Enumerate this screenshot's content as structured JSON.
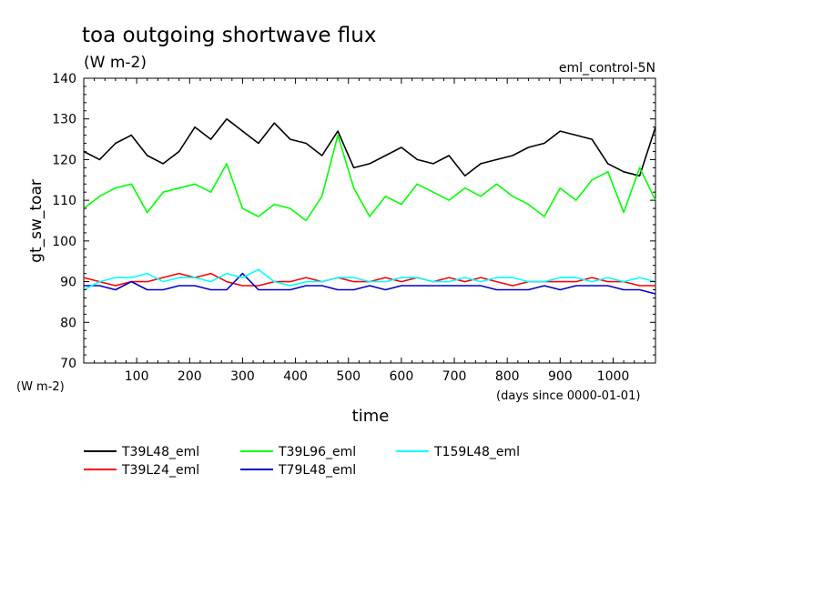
{
  "chart_data": {
    "type": "line",
    "title": "toa outgoing shortwave flux",
    "subtitle": "(W m-2)",
    "run_label": "eml_control-5N",
    "ylabel": "gt_sw_toar",
    "yunit": "(W m-2)",
    "xlabel": "time",
    "xunit": "(days since 0000-01-01)",
    "xlim": [
      0,
      1080
    ],
    "ylim": [
      70,
      140
    ],
    "xticks": [
      100,
      200,
      300,
      400,
      500,
      600,
      700,
      800,
      900,
      1000
    ],
    "yticks": [
      70,
      80,
      90,
      100,
      110,
      120,
      130,
      140
    ],
    "grid": false,
    "legend_position": "bottom",
    "series": [
      {
        "name": "T39L48_eml",
        "color": "#000000",
        "x": [
          0,
          30,
          60,
          90,
          120,
          150,
          180,
          210,
          240,
          270,
          300,
          330,
          360,
          390,
          420,
          450,
          480,
          510,
          540,
          570,
          600,
          630,
          660,
          690,
          720,
          750,
          780,
          810,
          840,
          870,
          900,
          930,
          960,
          990,
          1020,
          1050,
          1080
        ],
        "values": [
          122,
          120,
          124,
          126,
          121,
          119,
          122,
          128,
          125,
          130,
          127,
          124,
          129,
          125,
          124,
          121,
          127,
          118,
          119,
          121,
          123,
          120,
          119,
          121,
          116,
          119,
          120,
          121,
          123,
          124,
          127,
          126,
          125,
          119,
          117,
          116,
          128
        ]
      },
      {
        "name": "T39L24_eml",
        "color": "#ff0000",
        "x": [
          0,
          30,
          60,
          90,
          120,
          150,
          180,
          210,
          240,
          270,
          300,
          330,
          360,
          390,
          420,
          450,
          480,
          510,
          540,
          570,
          600,
          630,
          660,
          690,
          720,
          750,
          780,
          810,
          840,
          870,
          900,
          930,
          960,
          990,
          1020,
          1050,
          1080
        ],
        "values": [
          91,
          90,
          89,
          90,
          90,
          91,
          92,
          91,
          92,
          90,
          89,
          89,
          90,
          90,
          91,
          90,
          91,
          90,
          90,
          91,
          90,
          91,
          90,
          91,
          90,
          91,
          90,
          89,
          90,
          90,
          90,
          90,
          91,
          90,
          90,
          89,
          89
        ]
      },
      {
        "name": "T39L96_eml",
        "color": "#00ff00",
        "x": [
          0,
          30,
          60,
          90,
          120,
          150,
          180,
          210,
          240,
          270,
          300,
          330,
          360,
          390,
          420,
          450,
          480,
          510,
          540,
          570,
          600,
          630,
          660,
          690,
          720,
          750,
          780,
          810,
          840,
          870,
          900,
          930,
          960,
          990,
          1020,
          1050,
          1080
        ],
        "values": [
          108,
          111,
          113,
          114,
          107,
          112,
          113,
          114,
          112,
          119,
          108,
          106,
          109,
          108,
          105,
          111,
          126,
          113,
          106,
          111,
          109,
          114,
          112,
          110,
          113,
          111,
          114,
          111,
          109,
          106,
          113,
          110,
          115,
          117,
          107,
          118,
          110
        ]
      },
      {
        "name": "T79L48_eml",
        "color": "#0000cc",
        "x": [
          0,
          30,
          60,
          90,
          120,
          150,
          180,
          210,
          240,
          270,
          300,
          330,
          360,
          390,
          420,
          450,
          480,
          510,
          540,
          570,
          600,
          630,
          660,
          690,
          720,
          750,
          780,
          810,
          840,
          870,
          900,
          930,
          960,
          990,
          1020,
          1050,
          1080
        ],
        "values": [
          89,
          89,
          88,
          90,
          88,
          88,
          89,
          89,
          88,
          88,
          92,
          88,
          88,
          88,
          89,
          89,
          88,
          88,
          89,
          88,
          89,
          89,
          89,
          89,
          89,
          89,
          88,
          88,
          88,
          89,
          88,
          89,
          89,
          89,
          88,
          88,
          87
        ]
      },
      {
        "name": "T159L48_eml",
        "color": "#00ffff",
        "x": [
          0,
          30,
          60,
          90,
          120,
          150,
          180,
          210,
          240,
          270,
          300,
          330,
          360,
          390,
          420,
          450,
          480,
          510,
          540,
          570,
          600,
          630,
          660,
          690,
          720,
          750,
          780,
          810,
          840,
          870,
          900,
          930,
          960,
          990,
          1020,
          1050,
          1080
        ],
        "values": [
          88,
          90,
          91,
          91,
          92,
          90,
          91,
          91,
          90,
          92,
          91,
          93,
          90,
          89,
          90,
          90,
          91,
          91,
          90,
          90,
          91,
          91,
          90,
          90,
          91,
          90,
          91,
          91,
          90,
          90,
          91,
          91,
          90,
          91,
          90,
          91,
          90
        ]
      }
    ]
  }
}
